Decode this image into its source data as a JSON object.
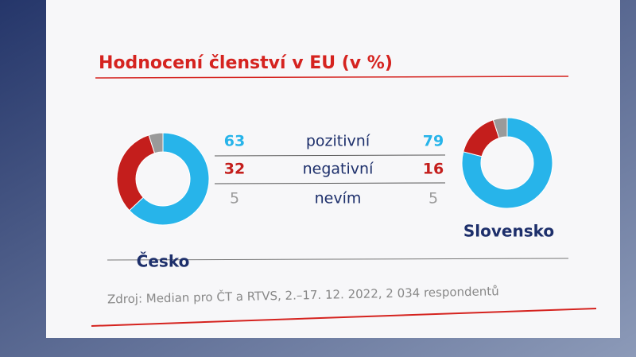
{
  "chart_data": {
    "type": "donut",
    "title": "Hodnocení členství v EU (v %)",
    "categories": [
      "pozitivní",
      "negativní",
      "nevím"
    ],
    "colors": [
      "#27b4ea",
      "#c41e1c",
      "#9a9a9a"
    ],
    "series": [
      {
        "name": "Česko",
        "values": [
          63,
          32,
          5
        ]
      },
      {
        "name": "Slovensko",
        "values": [
          79,
          16,
          5
        ]
      }
    ],
    "source": "Zdroj: Median pro ČT a RTVS, 2.–17. 12. 2022, 2 034 respondentů"
  }
}
